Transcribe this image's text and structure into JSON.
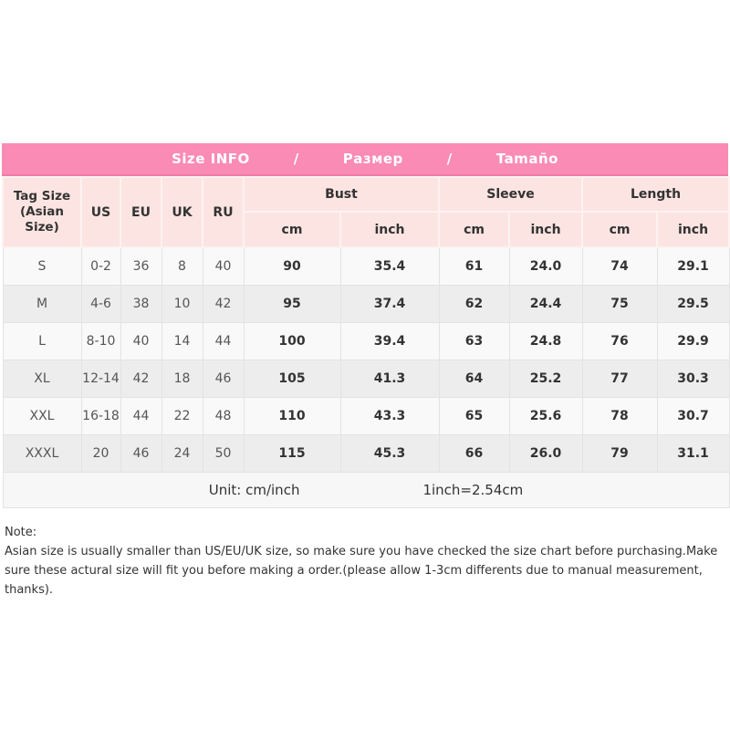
{
  "title_bar": {
    "segments": [
      "Size INFO",
      "/",
      "Размер",
      "/",
      "Tamaño"
    ]
  },
  "table": {
    "corner_header": {
      "line1": "Tag Size",
      "line2": "(Asian Size)"
    },
    "size_system_headers": [
      "US",
      "EU",
      "UK",
      "RU"
    ],
    "measurement_groups": [
      "Bust",
      "Sleeve",
      "Length"
    ],
    "unit_subheaders": [
      "cm",
      "inch",
      "cm",
      "inch",
      "cm",
      "inch"
    ],
    "rows": [
      [
        "S",
        "0-2",
        "36",
        "8",
        "40",
        "90",
        "35.4",
        "61",
        "24.0",
        "74",
        "29.1"
      ],
      [
        "M",
        "4-6",
        "38",
        "10",
        "42",
        "95",
        "37.4",
        "62",
        "24.4",
        "75",
        "29.5"
      ],
      [
        "L",
        "8-10",
        "40",
        "14",
        "44",
        "100",
        "39.4",
        "63",
        "24.8",
        "76",
        "29.9"
      ],
      [
        "XL",
        "12-14",
        "42",
        "18",
        "46",
        "105",
        "41.3",
        "64",
        "25.2",
        "77",
        "30.3"
      ],
      [
        "XXL",
        "16-18",
        "44",
        "22",
        "48",
        "110",
        "43.3",
        "65",
        "25.6",
        "78",
        "30.7"
      ],
      [
        "XXXL",
        "20",
        "46",
        "24",
        "50",
        "115",
        "45.3",
        "66",
        "26.0",
        "79",
        "31.1"
      ]
    ],
    "footer": {
      "unit_label": "Unit: cm/inch",
      "conversion": "1inch=2.54cm"
    }
  },
  "note": {
    "heading": "Note:",
    "body": "Asian size is usually smaller than US/EU/UK size, so make sure you have checked the size chart before purchasing.Make sure these actural size will fit you before making a order.(please allow 1-3cm differents due to manual measurement, thanks)."
  },
  "colors": {
    "banner_pink": "#f98bb5",
    "banner_border": "#ef7ca6",
    "header_pale_pink": "#fbe4e1",
    "row_base": "#f9f9f9",
    "row_alt": "#ededed",
    "border_gray": "#e3e3e3",
    "text_dark": "#333333"
  }
}
